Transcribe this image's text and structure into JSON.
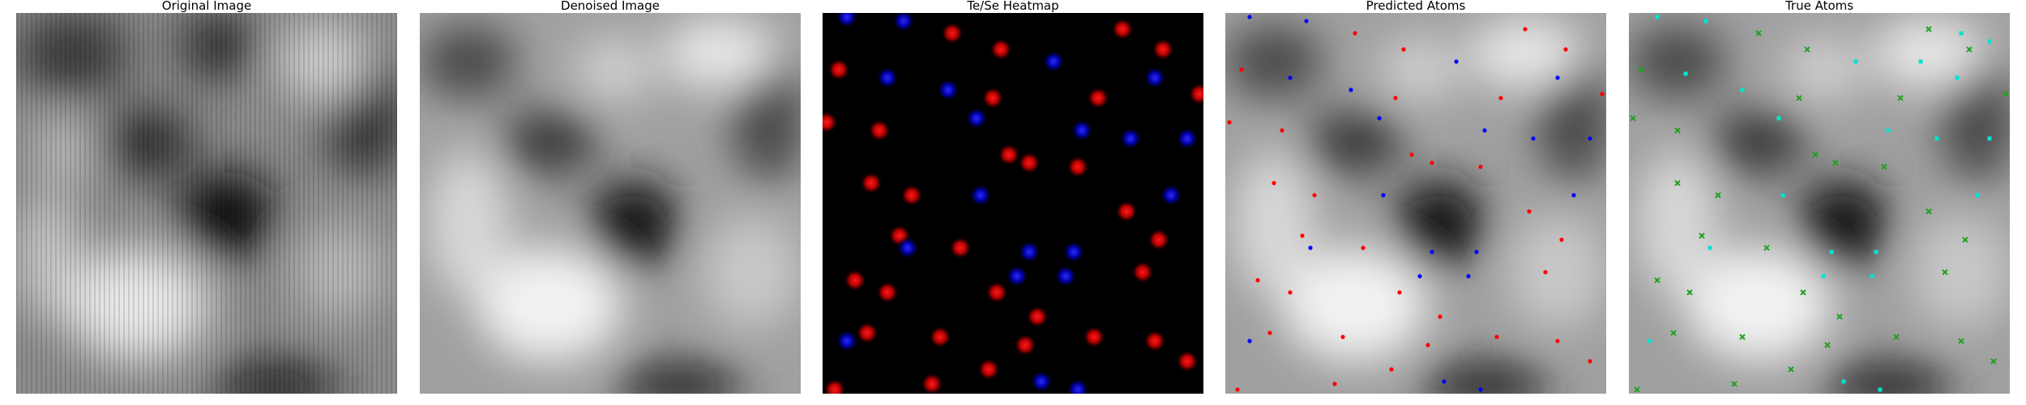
{
  "panels": [
    {
      "title": "Original Image"
    },
    {
      "title": "Denoised Image"
    },
    {
      "title": "Te/Se Heatmap"
    },
    {
      "title": "Predicted Atoms"
    },
    {
      "title": "True Atoms"
    }
  ],
  "colors": {
    "te": "#ff0000",
    "se": "#0000ff",
    "true_a": "#00e5d0",
    "true_b": "#22a022",
    "background_heatmap": "#000000"
  }
}
